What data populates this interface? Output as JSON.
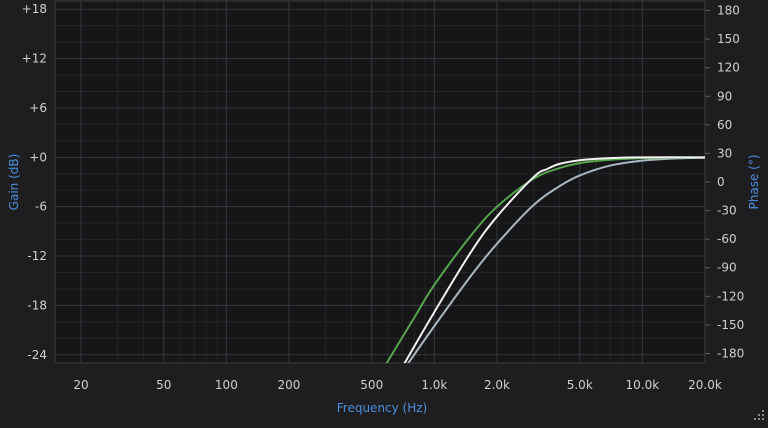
{
  "chart_data": {
    "type": "line",
    "title": "",
    "xlabel": "Frequency (Hz)",
    "ylabel": "Gain (dB)",
    "y2label": "Phase (°)",
    "x_scale": "log",
    "xlim": [
      15,
      20000
    ],
    "ylim": [
      -25,
      19
    ],
    "y2lim": [
      -190,
      190
    ],
    "grid": true,
    "legend": "none",
    "x_ticks": [
      {
        "value": 20,
        "label": "20"
      },
      {
        "value": 50,
        "label": "50"
      },
      {
        "value": 100,
        "label": "100"
      },
      {
        "value": 200,
        "label": "200"
      },
      {
        "value": 500,
        "label": "500"
      },
      {
        "value": 1000,
        "label": "1.0k"
      },
      {
        "value": 2000,
        "label": "2.0k"
      },
      {
        "value": 5000,
        "label": "5.0k"
      },
      {
        "value": 10000,
        "label": "10.0k"
      },
      {
        "value": 20000,
        "label": "20.0k"
      }
    ],
    "y_ticks": [
      {
        "value": 18,
        "label": "+18"
      },
      {
        "value": 12,
        "label": "+12"
      },
      {
        "value": 6,
        "label": "+6"
      },
      {
        "value": 0,
        "label": "+0"
      },
      {
        "value": -6,
        "label": "-6"
      },
      {
        "value": -12,
        "label": "-12"
      },
      {
        "value": -18,
        "label": "-18"
      },
      {
        "value": -24,
        "label": "-24"
      }
    ],
    "y2_ticks": [
      {
        "value": 180,
        "label": "180"
      },
      {
        "value": 150,
        "label": "150"
      },
      {
        "value": 120,
        "label": "120"
      },
      {
        "value": 90,
        "label": "90"
      },
      {
        "value": 60,
        "label": "60"
      },
      {
        "value": 30,
        "label": "30"
      },
      {
        "value": 0,
        "label": "0"
      },
      {
        "value": -30,
        "label": "-30"
      },
      {
        "value": -60,
        "label": "-60"
      },
      {
        "value": -90,
        "label": "-90"
      },
      {
        "value": -120,
        "label": "-120"
      },
      {
        "value": -150,
        "label": "-150"
      },
      {
        "value": -180,
        "label": "-180"
      }
    ],
    "series": [
      {
        "color": "#a9b7c3",
        "x": [
          750,
          1000,
          1500,
          2000,
          3000,
          4000,
          5000,
          7000,
          10000,
          14000,
          20000
        ],
        "y": [
          -25,
          -20.5,
          -14.4,
          -10.5,
          -5.8,
          -3.5,
          -2.2,
          -1.0,
          -0.4,
          -0.15,
          -0.05
        ]
      },
      {
        "color": "#55a64b",
        "x": [
          590,
          800,
          1000,
          1500,
          2000,
          3000,
          4000,
          5000,
          7000,
          10000,
          20000
        ],
        "y": [
          -25,
          -19.5,
          -15.5,
          -9.5,
          -6.0,
          -2.6,
          -1.3,
          -0.7,
          -0.3,
          -0.1,
          0
        ]
      },
      {
        "color": "#f2f2f2",
        "x": [
          720,
          1000,
          1500,
          2000,
          3000,
          3500,
          4000,
          5000,
          7000,
          10000,
          20000
        ],
        "y": [
          -25,
          -18.8,
          -11.5,
          -7.2,
          -2.4,
          -1.4,
          -0.8,
          -0.35,
          -0.1,
          0,
          0
        ]
      }
    ]
  }
}
